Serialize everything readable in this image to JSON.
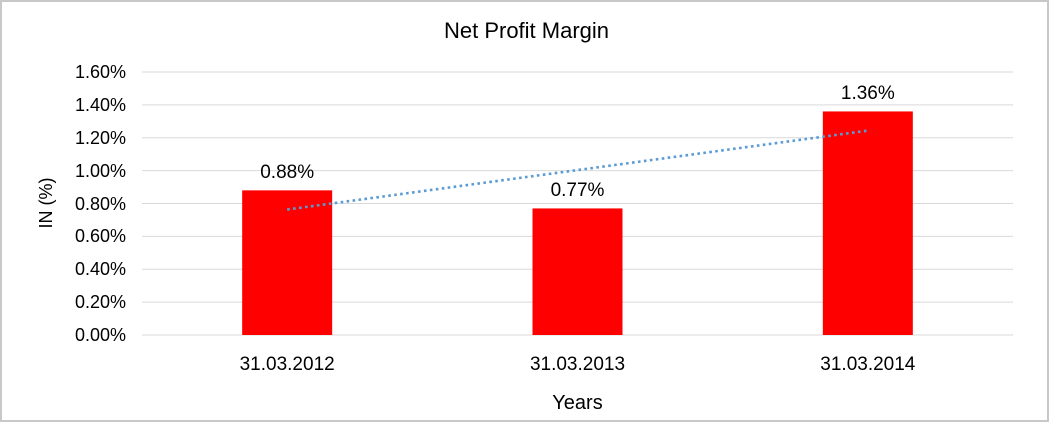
{
  "chart_data": {
    "type": "bar",
    "title": "Net Profit Margin",
    "categories": [
      "31.03.2012",
      "31.03.2013",
      "31.03.2014"
    ],
    "values": [
      0.88,
      0.77,
      1.36
    ],
    "data_labels": [
      "0.88%",
      "0.77%",
      "1.36%"
    ],
    "xlabel": "Years",
    "ylabel": "IN (%)",
    "ylim": [
      0,
      1.6
    ],
    "ytick_labels": [
      "0.00%",
      "0.20%",
      "0.40%",
      "0.60%",
      "0.80%",
      "1.00%",
      "1.20%",
      "1.40%",
      "1.60%"
    ],
    "grid": true,
    "legend_position": "none",
    "bar_color": "#ff0000",
    "gridline_color": "#d9d9d9",
    "trendline": {
      "type": "linear",
      "style": "dotted",
      "color": "#5b9bd5",
      "fitted_endpoints_pct": [
        0.763,
        1.243
      ]
    }
  }
}
